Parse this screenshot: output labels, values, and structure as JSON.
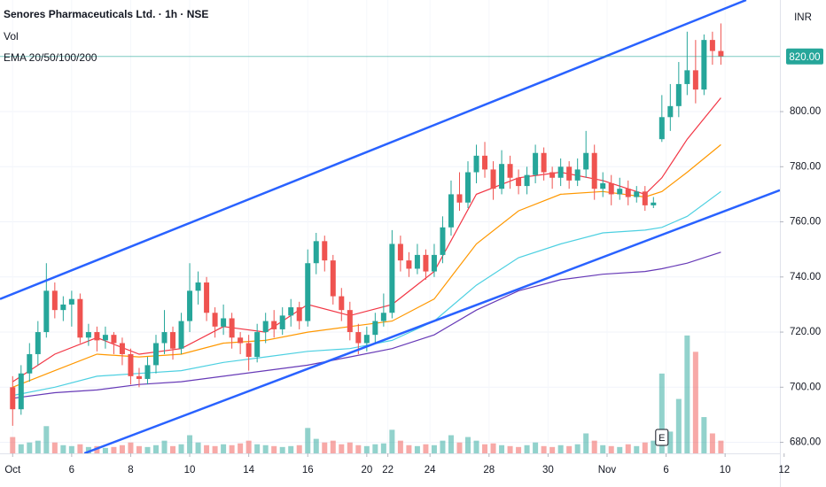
{
  "chart_data": {
    "type": "candlestick",
    "title": "Senores Pharmaceuticals Ltd. · 1h · NSE",
    "volume_label": "Vol",
    "indicator_label": "EMA 20/50/100/200",
    "currency": "INR",
    "up_color": "#26a69a",
    "down_color": "#ef5350",
    "grid": true,
    "xlim": [
      -3,
      182
    ],
    "ylim": [
      676,
      840.5
    ],
    "xticks": [
      {
        "value": 0,
        "label": "Oct"
      },
      {
        "value": 14,
        "label": "6"
      },
      {
        "value": 28,
        "label": "8"
      },
      {
        "value": 42,
        "label": "10"
      },
      {
        "value": 56,
        "label": "14"
      },
      {
        "value": 70,
        "label": "16"
      },
      {
        "value": 84,
        "label": "20"
      },
      {
        "value": 89,
        "label": "22"
      },
      {
        "value": 99,
        "label": "24"
      },
      {
        "value": 113,
        "label": "28"
      },
      {
        "value": 127,
        "label": "30"
      },
      {
        "value": 141,
        "label": "Nov"
      },
      {
        "value": 155,
        "label": "6"
      },
      {
        "value": 169,
        "label": "10"
      },
      {
        "value": 183,
        "label": "12"
      }
    ],
    "yticks": [
      {
        "value": 680,
        "label": "680.00"
      },
      {
        "value": 700,
        "label": "700.00"
      },
      {
        "value": 720,
        "label": "720.00"
      },
      {
        "value": 740,
        "label": "740.00"
      },
      {
        "value": 760,
        "label": "760.00"
      },
      {
        "value": 780,
        "label": "780.00"
      },
      {
        "value": 800,
        "label": "800.00"
      }
    ],
    "x": [
      0,
      2,
      4,
      6,
      8,
      10,
      12,
      14,
      16,
      18,
      20,
      22,
      24,
      26,
      28,
      30,
      32,
      34,
      36,
      38,
      40,
      42,
      44,
      46,
      48,
      50,
      52,
      54,
      56,
      58,
      60,
      62,
      64,
      66,
      68,
      70,
      72,
      74,
      76,
      78,
      80,
      82,
      84,
      86,
      88,
      90,
      92,
      94,
      96,
      98,
      100,
      102,
      104,
      106,
      108,
      110,
      112,
      114,
      116,
      118,
      120,
      122,
      124,
      126,
      128,
      130,
      132,
      134,
      136,
      138,
      140,
      142,
      144,
      146,
      148,
      150,
      152,
      154,
      156,
      158,
      160,
      162,
      164,
      166,
      168
    ],
    "open": [
      700,
      692,
      705,
      712,
      720,
      735,
      728,
      730,
      732,
      718,
      720,
      717,
      719,
      716,
      712,
      704,
      703,
      708,
      716,
      720,
      714,
      724,
      735,
      738,
      727,
      722,
      725,
      718,
      716,
      711,
      720,
      724,
      721,
      726,
      729,
      724,
      745,
      753,
      746,
      733,
      728,
      720,
      716,
      719,
      724,
      727,
      752,
      746,
      743,
      748,
      742,
      748,
      758,
      770,
      767,
      778,
      784,
      779,
      772,
      781,
      776,
      773,
      777,
      785,
      778,
      776,
      780,
      775,
      779,
      785,
      772,
      774,
      770,
      772,
      769,
      771,
      766,
      790,
      798,
      802,
      810,
      815,
      808,
      826,
      822
    ],
    "high": [
      704,
      708,
      716,
      724,
      745,
      738,
      733,
      735,
      734,
      723,
      722,
      722,
      720,
      718,
      714,
      707,
      711,
      719,
      728,
      722,
      727,
      745,
      742,
      740,
      729,
      730,
      727,
      720,
      719,
      723,
      727,
      728,
      729,
      732,
      731,
      750,
      756,
      755,
      748,
      736,
      731,
      723,
      722,
      727,
      734,
      757,
      755,
      749,
      752,
      750,
      752,
      762,
      775,
      778,
      782,
      788,
      789,
      782,
      786,
      784,
      779,
      780,
      788,
      787,
      780,
      783,
      782,
      783,
      793,
      788,
      778,
      777,
      776,
      775,
      773,
      773,
      769,
      806,
      810,
      818,
      829,
      826,
      828,
      829,
      832
    ],
    "low": [
      686,
      690,
      702,
      708,
      718,
      725,
      724,
      722,
      716,
      715,
      713,
      714,
      712,
      708,
      701,
      700,
      701,
      705,
      712,
      710,
      712,
      720,
      730,
      724,
      718,
      719,
      714,
      712,
      706,
      709,
      716,
      718,
      719,
      722,
      721,
      722,
      741,
      742,
      730,
      724,
      717,
      712,
      713,
      716,
      722,
      725,
      742,
      740,
      741,
      739,
      740,
      745,
      755,
      764,
      765,
      774,
      776,
      768,
      770,
      772,
      770,
      770,
      774,
      775,
      772,
      773,
      772,
      773,
      776,
      768,
      769,
      766,
      768,
      766,
      767,
      764,
      765,
      789,
      793,
      798,
      806,
      803,
      806,
      817,
      817
    ],
    "close": [
      692,
      705,
      712,
      720,
      735,
      728,
      730,
      732,
      718,
      720,
      717,
      719,
      716,
      712,
      704,
      703,
      708,
      716,
      720,
      714,
      724,
      735,
      738,
      727,
      722,
      725,
      718,
      716,
      711,
      720,
      724,
      721,
      726,
      729,
      724,
      745,
      753,
      746,
      733,
      728,
      720,
      716,
      719,
      724,
      727,
      752,
      746,
      743,
      748,
      742,
      748,
      758,
      770,
      767,
      778,
      784,
      779,
      772,
      781,
      776,
      773,
      777,
      785,
      778,
      776,
      780,
      775,
      779,
      785,
      772,
      774,
      770,
      772,
      769,
      771,
      766,
      767,
      798,
      802,
      810,
      815,
      808,
      826,
      822,
      820
    ],
    "volume": [
      18,
      10,
      12,
      14,
      30,
      12,
      9,
      8,
      10,
      7,
      8,
      6,
      7,
      9,
      12,
      8,
      7,
      9,
      14,
      8,
      10,
      20,
      12,
      9,
      8,
      10,
      9,
      11,
      14,
      10,
      9,
      8,
      7,
      8,
      9,
      28,
      16,
      12,
      14,
      10,
      12,
      9,
      8,
      10,
      11,
      26,
      14,
      9,
      8,
      10,
      9,
      14,
      20,
      12,
      18,
      14,
      10,
      11,
      9,
      8,
      7,
      9,
      12,
      8,
      7,
      9,
      8,
      10,
      22,
      14,
      9,
      8,
      7,
      10,
      8,
      12,
      14,
      88,
      24,
      60,
      130,
      112,
      40,
      22,
      14
    ],
    "ema_lines": [
      {
        "color": "#f23645",
        "x": [
          0,
          10,
          20,
          30,
          40,
          50,
          60,
          70,
          80,
          90,
          100,
          110,
          120,
          130,
          140,
          150,
          154,
          160,
          168
        ],
        "values": [
          702,
          712,
          718,
          712,
          714,
          722,
          720,
          730,
          726,
          730,
          742,
          770,
          776,
          778,
          775,
          770,
          776,
          790,
          805
        ]
      },
      {
        "color": "#ff9800",
        "x": [
          0,
          10,
          20,
          30,
          40,
          50,
          60,
          70,
          80,
          90,
          100,
          110,
          120,
          130,
          140,
          150,
          154,
          160,
          168
        ],
        "values": [
          700,
          706,
          712,
          711,
          712,
          716,
          717,
          720,
          722,
          724,
          732,
          752,
          764,
          770,
          771,
          769,
          771,
          778,
          788
        ]
      },
      {
        "color": "#4dd0e1",
        "x": [
          0,
          10,
          20,
          30,
          40,
          50,
          60,
          70,
          80,
          90,
          100,
          110,
          120,
          130,
          140,
          150,
          154,
          160,
          168
        ],
        "values": [
          697,
          700,
          704,
          705,
          706,
          709,
          711,
          713,
          714,
          717,
          724,
          737,
          747,
          752,
          756,
          757,
          758,
          762,
          771
        ]
      },
      {
        "color": "#673ab7",
        "x": [
          0,
          10,
          20,
          30,
          40,
          50,
          60,
          70,
          80,
          90,
          100,
          110,
          120,
          130,
          140,
          150,
          154,
          160,
          168
        ],
        "values": [
          696,
          698,
          699,
          701,
          702,
          704,
          706,
          708,
          711,
          714,
          719,
          728,
          735,
          739,
          741,
          742,
          743,
          745,
          749
        ]
      }
    ],
    "trendlines": [
      {
        "color": "#2962ff",
        "x": [
          -3,
          174
        ],
        "y": [
          732,
          840.5
        ]
      },
      {
        "color": "#2962ff",
        "x": [
          17,
          182
        ],
        "y": [
          676,
          771.5
        ]
      }
    ],
    "last_price": {
      "value": 820,
      "label": "820.00",
      "color": "#26a69a"
    },
    "events": [
      {
        "x": 154,
        "label": "E"
      }
    ]
  }
}
